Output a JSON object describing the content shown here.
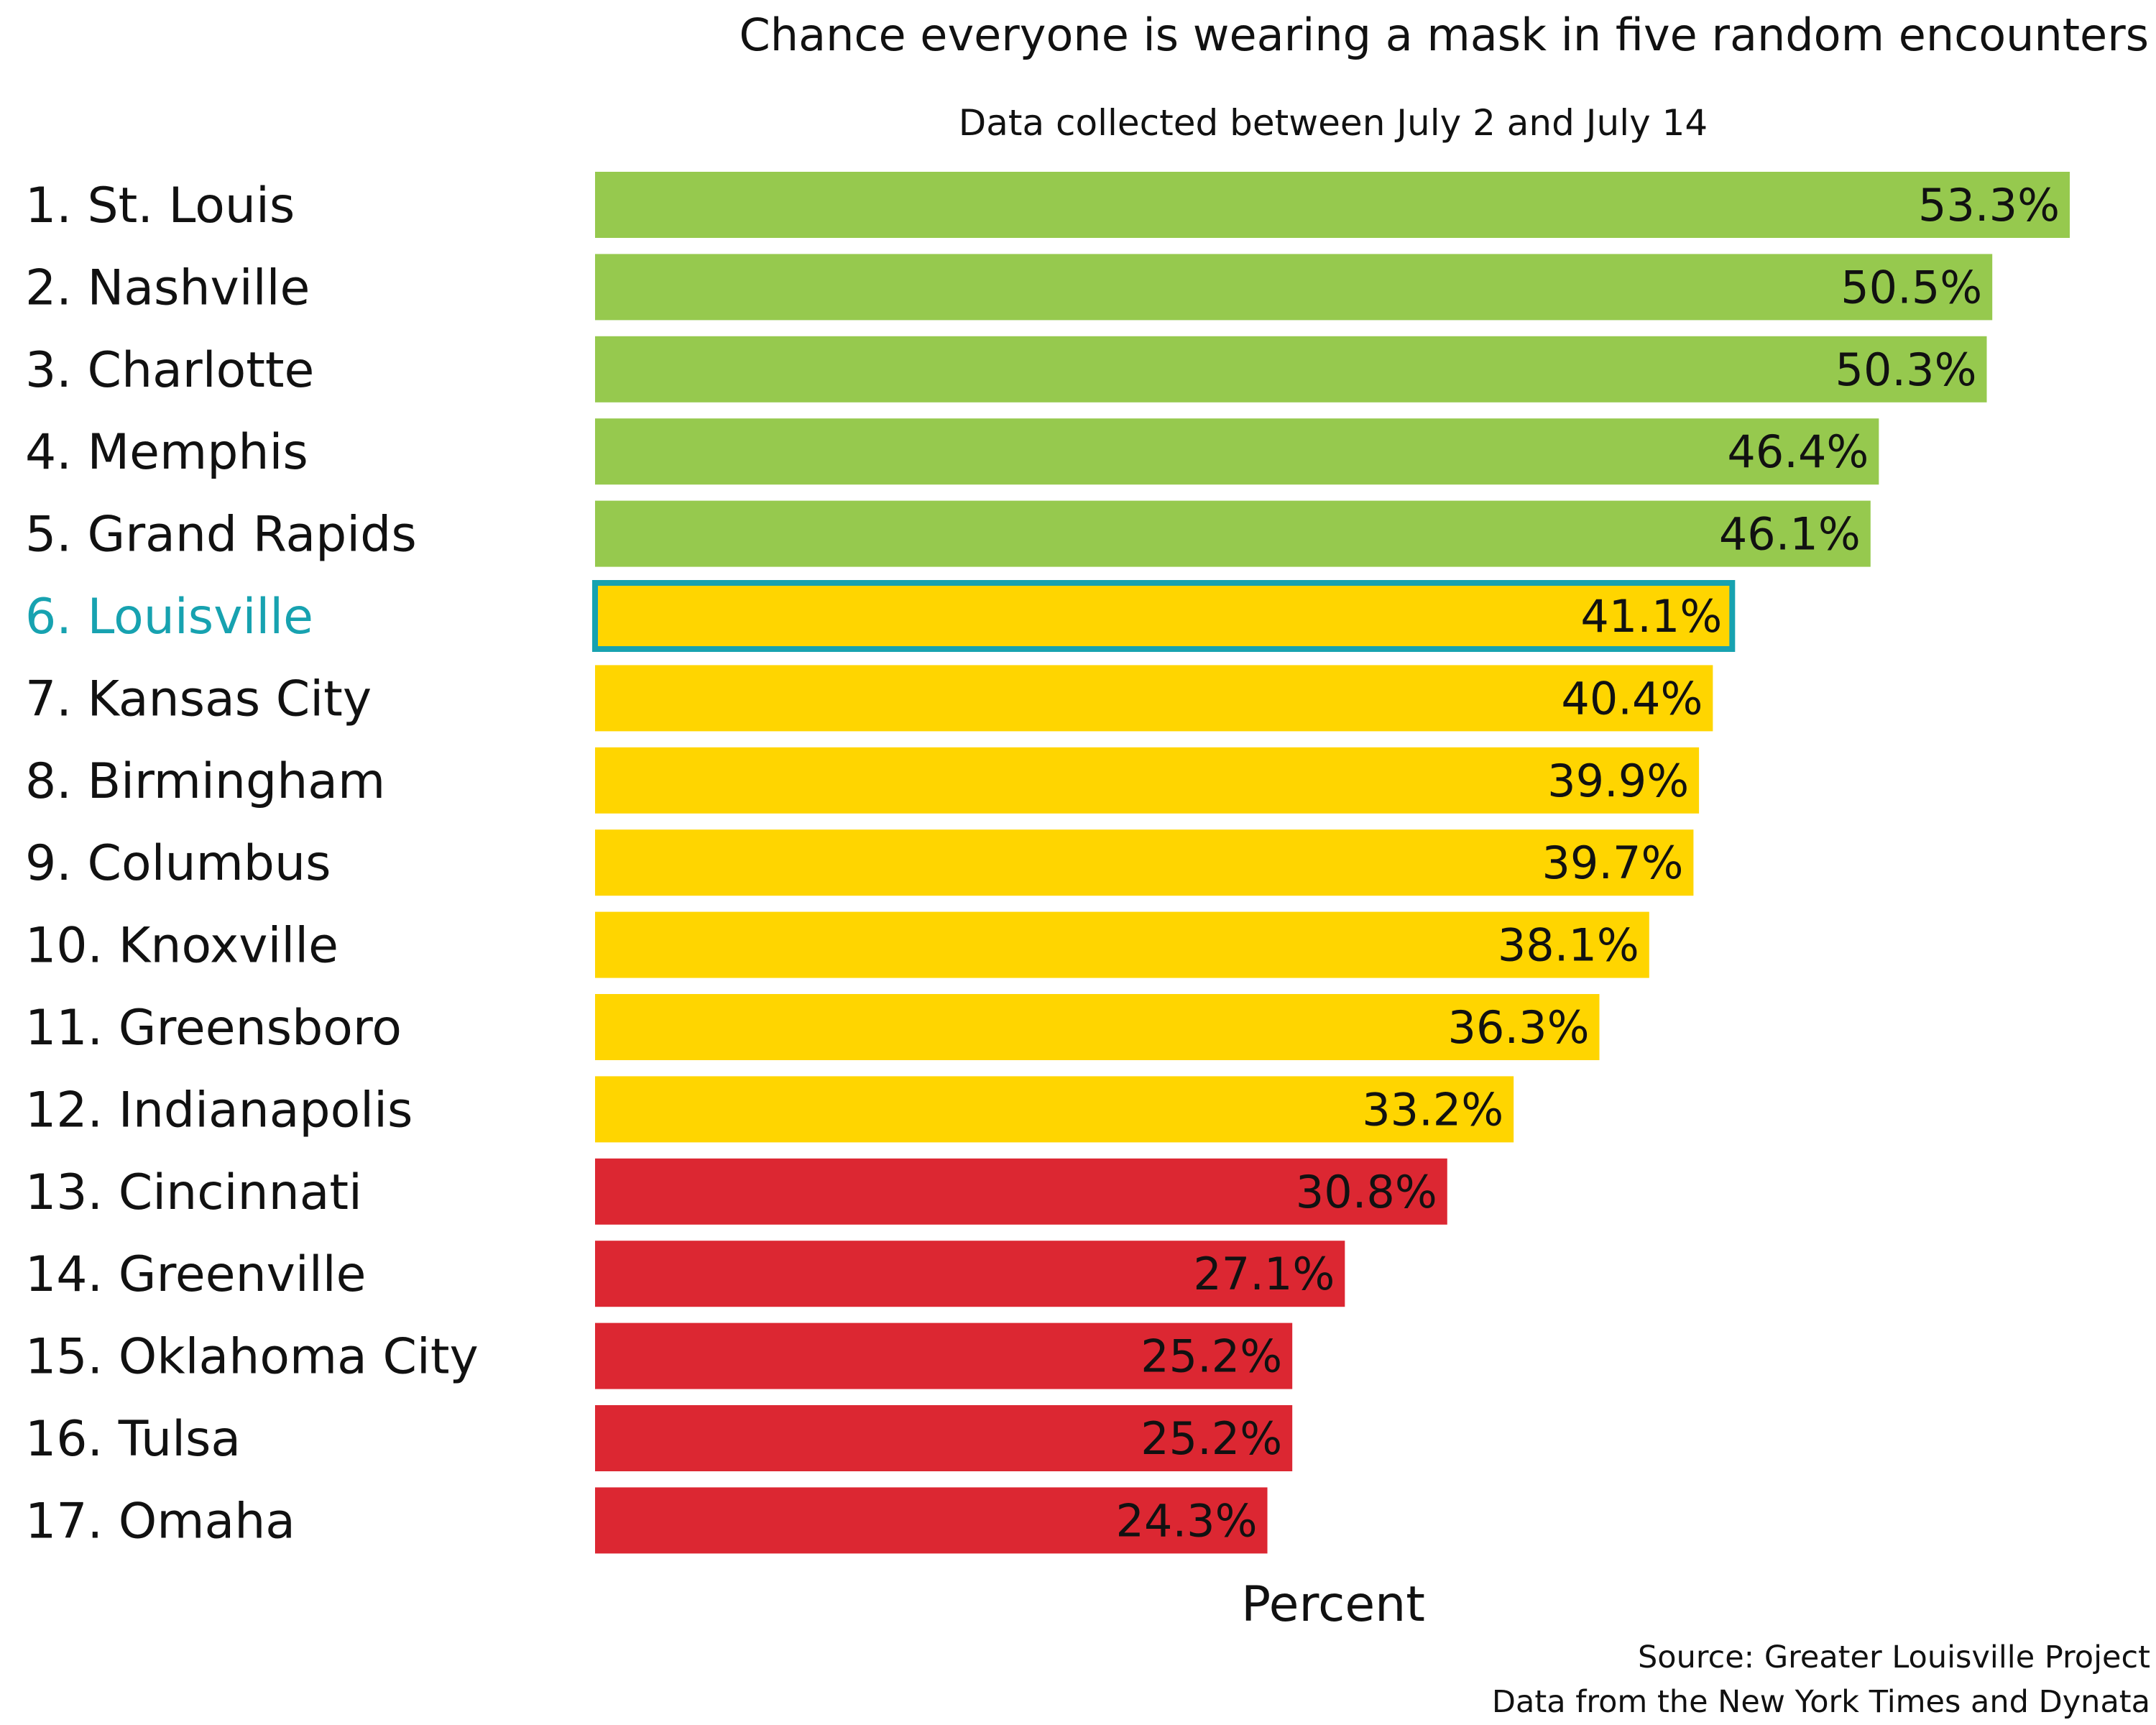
{
  "chart_data": {
    "type": "bar",
    "orientation": "horizontal",
    "title": "Chance everyone is wearing a mask in five random encounters",
    "subtitle": "Data collected between July 2 and July 14",
    "xlabel": "Percent",
    "ylabel": "",
    "xlim": [
      0,
      53.3
    ],
    "grid": false,
    "legend": "none",
    "highlight": "6. Louisville",
    "categories": [
      "1. St. Louis",
      "2. Nashville",
      "3. Charlotte",
      "4. Memphis",
      "5. Grand Rapids",
      "6. Louisville",
      "7. Kansas City",
      "8. Birmingham",
      "9. Columbus",
      "10. Knoxville",
      "11. Greensboro",
      "12. Indianapolis",
      "13. Cincinnati",
      "14. Greenville",
      "15. Oklahoma City",
      "16. Tulsa",
      "17. Omaha"
    ],
    "values": [
      53.3,
      50.5,
      50.3,
      46.4,
      46.1,
      41.1,
      40.4,
      39.9,
      39.7,
      38.1,
      36.3,
      33.2,
      30.8,
      27.1,
      25.2,
      25.2,
      24.3
    ],
    "value_labels": [
      "53.3%",
      "50.5%",
      "50.3%",
      "46.4%",
      "46.1%",
      "41.1%",
      "40.4%",
      "39.9%",
      "39.7%",
      "38.1%",
      "36.3%",
      "33.2%",
      "30.8%",
      "27.1%",
      "25.2%",
      "25.2%",
      "24.3%"
    ],
    "tiers": [
      "green",
      "green",
      "green",
      "green",
      "green",
      "yellow",
      "yellow",
      "yellow",
      "yellow",
      "yellow",
      "yellow",
      "yellow",
      "red",
      "red",
      "red",
      "red",
      "red"
    ],
    "colors": {
      "green": "#96c94e",
      "yellow": "#ffd500",
      "red": "#dc2732",
      "highlight_outline": "#17a2b0",
      "highlight_text": "#17a2b0"
    }
  },
  "footer": {
    "source": "Source: Greater Louisville Project",
    "data_from": "Data from the New York Times and Dynata"
  }
}
